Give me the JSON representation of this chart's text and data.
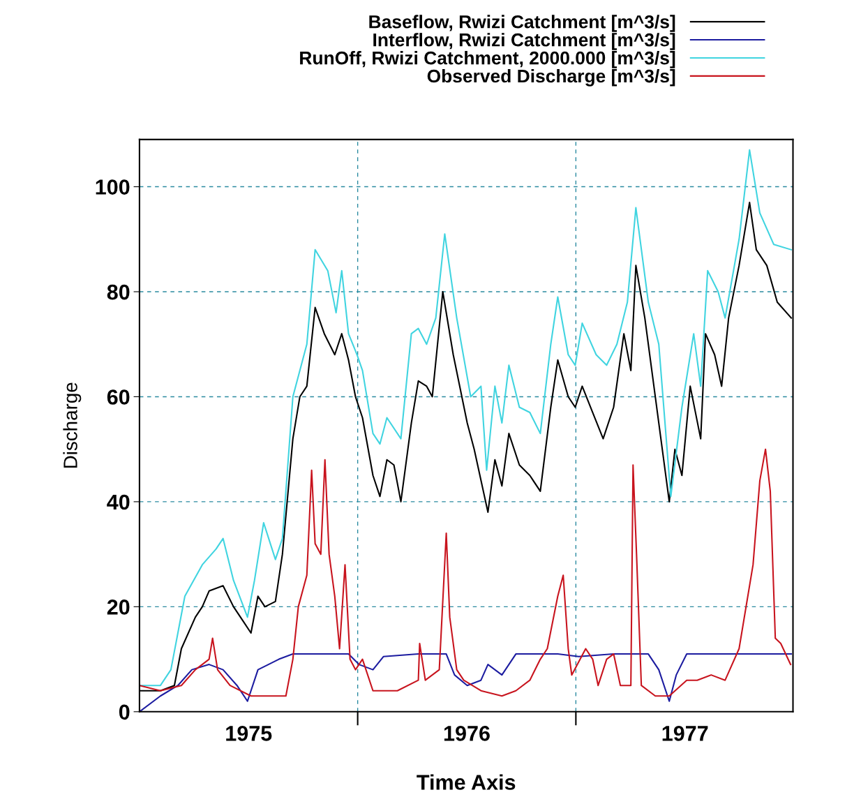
{
  "chart_data": {
    "type": "line",
    "xlabel": "Time Axis",
    "ylabel": "Discharge",
    "xlim": [
      1975,
      1977.995
    ],
    "ylim": [
      0,
      109
    ],
    "xticks": [
      {
        "value": 1975.5,
        "label": "1975"
      },
      {
        "value": 1976,
        "label": null
      },
      {
        "value": 1976.5,
        "label": "1976"
      },
      {
        "value": 1977,
        "label": null
      },
      {
        "value": 1977.5,
        "label": "1977"
      }
    ],
    "yticks": [
      0,
      20,
      40,
      60,
      80,
      100
    ],
    "grid": true,
    "legend": "top",
    "line_style": "solid",
    "series": [
      {
        "name": "Baseflow, Rwizi Catchment [m^3/s]",
        "color": "#000000",
        "x": [
          1975.0,
          1975.096,
          1975.16,
          1975.192,
          1975.256,
          1975.288,
          1975.319,
          1975.383,
          1975.431,
          1975.479,
          1975.511,
          1975.543,
          1975.575,
          1975.623,
          1975.655,
          1975.703,
          1975.735,
          1975.767,
          1975.805,
          1975.847,
          1975.895,
          1975.927,
          1975.958,
          1975.99,
          1976.022,
          1976.07,
          1976.102,
          1976.134,
          1976.166,
          1976.198,
          1976.246,
          1976.278,
          1976.316,
          1976.342,
          1976.39,
          1976.438,
          1976.502,
          1976.534,
          1976.597,
          1976.629,
          1976.661,
          1976.693,
          1976.741,
          1976.789,
          1976.837,
          1976.885,
          1976.917,
          1976.965,
          1976.997,
          1977.029,
          1977.077,
          1977.125,
          1977.173,
          1977.22,
          1977.252,
          1977.275,
          1977.316,
          1977.38,
          1977.428,
          1977.454,
          1977.486,
          1977.524,
          1977.572,
          1977.594,
          1977.636,
          1977.668,
          1977.7,
          1977.748,
          1977.796,
          1977.827,
          1977.875,
          1977.923,
          1977.987
        ],
        "values": [
          4,
          4,
          5,
          12,
          18,
          20,
          23,
          24,
          20,
          17,
          15,
          22,
          20,
          21,
          30,
          52,
          60,
          62,
          77,
          72,
          68,
          72,
          67,
          60,
          56,
          45,
          41,
          48,
          47,
          40,
          55,
          63,
          62,
          60,
          80,
          68,
          55,
          50,
          38,
          48,
          43,
          53,
          47,
          45,
          42,
          58,
          67,
          60,
          58,
          62,
          57,
          52,
          58,
          72,
          65,
          85,
          75,
          55,
          40,
          50,
          45,
          62,
          52,
          72,
          68,
          62,
          75,
          85,
          97,
          88,
          85,
          78,
          75
        ]
      },
      {
        "name": "Interflow, Rwizi Catchment [m^3/s]",
        "color": "#1c1ca0",
        "x": [
          1975.0,
          1975.096,
          1975.176,
          1975.24,
          1975.319,
          1975.383,
          1975.447,
          1975.495,
          1975.543,
          1975.591,
          1975.639,
          1975.703,
          1975.958,
          1976.006,
          1976.07,
          1976.118,
          1976.278,
          1976.406,
          1976.444,
          1976.502,
          1976.565,
          1976.597,
          1976.661,
          1976.725,
          1976.853,
          1976.917,
          1977.013,
          1977.173,
          1977.332,
          1977.38,
          1977.428,
          1977.46,
          1977.508,
          1977.652,
          1977.843,
          1977.987
        ],
        "values": [
          0,
          3,
          5,
          8,
          9,
          8,
          5,
          2,
          8,
          9,
          10,
          11,
          11,
          9,
          8,
          10.5,
          11,
          11,
          7,
          5,
          6,
          9,
          7,
          11,
          11,
          11,
          10.5,
          11,
          11,
          8,
          2,
          7,
          11,
          11,
          11,
          11
        ]
      },
      {
        "name": "RunOff, Rwizi Catchment, 2000.000 [m^3/s]",
        "color": "#40d4e0",
        "x": [
          1975.0,
          1975.096,
          1975.144,
          1975.208,
          1975.288,
          1975.351,
          1975.383,
          1975.431,
          1975.495,
          1975.527,
          1975.569,
          1975.623,
          1975.655,
          1975.703,
          1975.767,
          1975.805,
          1975.863,
          1975.901,
          1975.927,
          1975.958,
          1975.997,
          1976.022,
          1976.07,
          1976.102,
          1976.134,
          1976.198,
          1976.246,
          1976.278,
          1976.316,
          1976.358,
          1976.399,
          1976.454,
          1976.518,
          1976.565,
          1976.591,
          1976.629,
          1976.661,
          1976.693,
          1976.741,
          1976.789,
          1976.837,
          1976.885,
          1976.917,
          1976.965,
          1976.997,
          1977.029,
          1977.093,
          1977.141,
          1977.188,
          1977.236,
          1977.275,
          1977.332,
          1977.38,
          1977.435,
          1977.486,
          1977.54,
          1977.572,
          1977.604,
          1977.652,
          1977.684,
          1977.748,
          1977.796,
          1977.843,
          1977.907,
          1977.987
        ],
        "values": [
          5,
          5,
          8,
          22,
          28,
          31,
          33,
          25,
          18,
          25,
          36,
          29,
          33,
          60,
          70,
          88,
          84,
          76,
          84,
          72,
          68,
          65,
          53,
          51,
          56,
          52,
          72,
          73,
          70,
          75,
          91,
          75,
          60,
          62,
          46,
          62,
          55,
          66,
          58,
          57,
          53,
          70,
          79,
          68,
          66,
          74,
          68,
          66,
          70,
          78,
          96,
          78,
          70,
          41,
          58,
          72,
          62,
          84,
          80,
          75,
          90,
          107,
          95,
          89,
          88
        ]
      },
      {
        "name": "Observed Discharge [m^3/s]",
        "color": "#c8141e",
        "x": [
          1975.0,
          1975.096,
          1975.192,
          1975.256,
          1975.319,
          1975.335,
          1975.358,
          1975.415,
          1975.511,
          1975.575,
          1975.671,
          1975.703,
          1975.728,
          1975.767,
          1975.789,
          1975.805,
          1975.831,
          1975.85,
          1975.869,
          1975.895,
          1975.917,
          1975.942,
          1975.965,
          1975.99,
          1976.022,
          1976.07,
          1976.182,
          1976.278,
          1976.284,
          1976.31,
          1976.374,
          1976.406,
          1976.422,
          1976.454,
          1976.486,
          1976.565,
          1976.661,
          1976.725,
          1976.789,
          1976.837,
          1976.869,
          1976.917,
          1976.942,
          1976.965,
          1976.981,
          1977.045,
          1977.077,
          1977.102,
          1977.141,
          1977.173,
          1977.204,
          1977.252,
          1977.262,
          1977.278,
          1977.3,
          1977.364,
          1977.428,
          1977.508,
          1977.556,
          1977.62,
          1977.684,
          1977.748,
          1977.812,
          1977.843,
          1977.869,
          1977.891,
          1977.914,
          1977.939,
          1977.984
        ],
        "values": [
          5,
          4,
          5,
          8,
          10,
          14,
          8,
          5,
          3,
          3,
          3,
          10,
          20,
          26,
          46,
          32,
          30,
          48,
          30,
          22,
          12,
          28,
          10,
          8,
          10,
          4,
          4,
          6,
          13,
          6,
          8,
          34,
          18,
          8,
          6,
          4,
          3,
          4,
          6,
          10,
          12,
          22,
          26,
          12,
          7,
          12,
          10,
          5,
          10,
          11,
          5,
          5,
          47,
          30,
          5,
          3,
          3,
          6,
          6,
          7,
          6,
          12,
          28,
          44,
          50,
          42,
          14,
          13,
          9
        ]
      }
    ]
  }
}
